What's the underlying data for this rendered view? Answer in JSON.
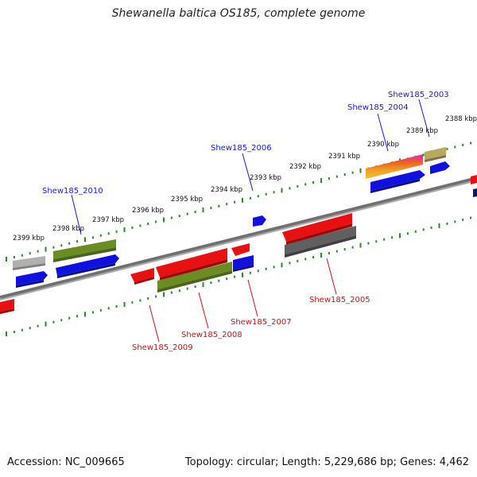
{
  "title": "Shewanella baltica OS185, complete genome",
  "footer": {
    "accession": "Accession: NC_009665",
    "summary": "Topology: circular; Length: 5,229,686 bp; Genes: 4,462"
  },
  "colors": {
    "backbone": "#808080",
    "tick": "#2a8a2a",
    "label_forward": "#1a1ad0",
    "label_reverse": "#d01010",
    "gene_blue": "#1010e0",
    "gene_red": "#e81010",
    "gene_olive": "#6b8c23",
    "gene_gray": "#b0b0b0",
    "gene_darkgray": "#606060",
    "gene_khaki": "#b8a860"
  },
  "scale_labels": [
    "2388 kbp",
    "2389 kbp",
    "2390 kbp",
    "2391 kbp",
    "2392 kbp",
    "2393 kbp",
    "2394 kbp",
    "2395 kbp",
    "2396 kbp",
    "2397 kbp",
    "2398 kbp",
    "2399 kbp"
  ],
  "gene_labels_forward": [
    "Shew185_2003",
    "Shew185_2004",
    "Shew185_2006",
    "Shew185_2010"
  ],
  "gene_labels_reverse": [
    "Shew185_2005",
    "Shew185_2007",
    "Shew185_2008",
    "Shew185_2009"
  ]
}
